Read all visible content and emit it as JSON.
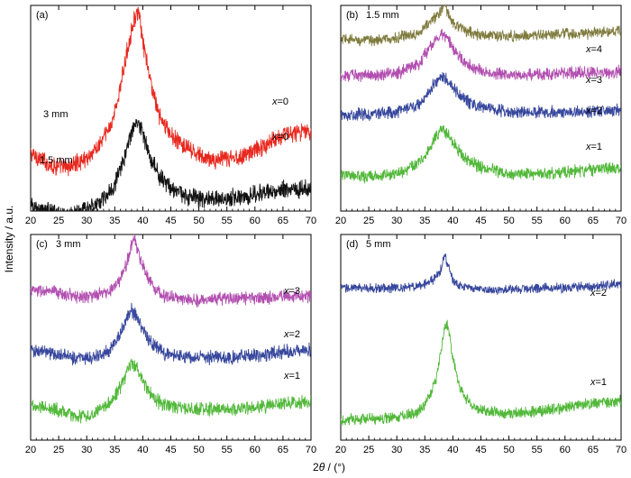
{
  "figure": {
    "ylabel": "Intensity / a.u.",
    "xlabel_prefix": "2",
    "xlabel_theta": "θ",
    "xlabel_suffix": " / (°)"
  },
  "chart_data": [
    {
      "type": "line",
      "panel_label": "(a)",
      "subtitle": "",
      "xlim": [
        20,
        70
      ],
      "xticks": [
        20,
        25,
        30,
        35,
        40,
        45,
        50,
        55,
        60,
        65,
        70
      ],
      "series": [
        {
          "label_var": "x",
          "label_rest": "=0",
          "annotation": "3 mm",
          "color": "#e8281e",
          "x": [
            20,
            22,
            24,
            26,
            28,
            30,
            32,
            34,
            35,
            36,
            37,
            38,
            38.5,
            39,
            39.5,
            40,
            41,
            42,
            43,
            45,
            48,
            50,
            52,
            55,
            58,
            60,
            62,
            64,
            66,
            68,
            70
          ],
          "y": [
            0.28,
            0.25,
            0.22,
            0.21,
            0.23,
            0.26,
            0.31,
            0.4,
            0.48,
            0.6,
            0.75,
            0.88,
            0.94,
            0.96,
            0.93,
            0.82,
            0.68,
            0.56,
            0.46,
            0.37,
            0.3,
            0.27,
            0.25,
            0.25,
            0.27,
            0.3,
            0.32,
            0.36,
            0.38,
            0.38,
            0.39
          ],
          "noise": 0.035
        },
        {
          "label_var": "x",
          "label_rest": "=0",
          "annotation": "1.5 mm",
          "color": "#111111",
          "x": [
            20,
            22,
            24,
            26,
            28,
            30,
            32,
            34,
            35,
            36,
            37,
            38,
            38.5,
            39,
            39.5,
            40,
            41,
            42,
            43,
            45,
            48,
            50,
            52,
            55,
            58,
            60,
            62,
            64,
            66,
            68,
            70
          ],
          "y": [
            0.02,
            0.01,
            -0.01,
            -0.02,
            -0.01,
            0.01,
            0.04,
            0.09,
            0.13,
            0.2,
            0.29,
            0.38,
            0.42,
            0.44,
            0.42,
            0.37,
            0.29,
            0.22,
            0.17,
            0.11,
            0.07,
            0.06,
            0.06,
            0.06,
            0.07,
            0.08,
            0.09,
            0.1,
            0.11,
            0.11,
            0.11
          ],
          "noise": 0.035
        }
      ]
    },
    {
      "type": "line",
      "panel_label": "(b)",
      "subtitle": "1.5 mm",
      "xlim": [
        20,
        70
      ],
      "xticks": [
        20,
        25,
        30,
        35,
        40,
        45,
        50,
        55,
        60,
        65,
        70
      ],
      "series": [
        {
          "label_var": "x",
          "label_rest": "=4",
          "annotation": "",
          "color": "#7e7a3c",
          "x": [
            20,
            25,
            30,
            34,
            36,
            37,
            38,
            38.5,
            39,
            40,
            42,
            45,
            50,
            55,
            60,
            65,
            70
          ],
          "y": [
            0.835,
            0.83,
            0.84,
            0.87,
            0.92,
            0.95,
            0.97,
            1.02,
            0.97,
            0.92,
            0.88,
            0.855,
            0.85,
            0.855,
            0.86,
            0.865,
            0.875
          ],
          "noise": 0.022
        },
        {
          "label_var": "x",
          "label_rest": "=3",
          "annotation": "",
          "color": "#b24fb0",
          "x": [
            20,
            25,
            30,
            34,
            36,
            37,
            38,
            39,
            40,
            42,
            45,
            50,
            55,
            60,
            65,
            70
          ],
          "y": [
            0.66,
            0.66,
            0.67,
            0.72,
            0.8,
            0.84,
            0.86,
            0.84,
            0.79,
            0.72,
            0.68,
            0.66,
            0.665,
            0.67,
            0.675,
            0.68
          ],
          "noise": 0.024
        },
        {
          "label_var": "x",
          "label_rest": "=2",
          "annotation": "",
          "color": "#37479c",
          "x": [
            20,
            25,
            30,
            34,
            36,
            37,
            38,
            39,
            40,
            42,
            45,
            50,
            55,
            60,
            65,
            70
          ],
          "y": [
            0.47,
            0.47,
            0.48,
            0.52,
            0.59,
            0.63,
            0.66,
            0.64,
            0.6,
            0.54,
            0.5,
            0.48,
            0.48,
            0.48,
            0.485,
            0.49
          ],
          "noise": 0.024
        },
        {
          "label_var": "x",
          "label_rest": "=1",
          "annotation": "",
          "color": "#52b83a",
          "x": [
            20,
            25,
            30,
            34,
            36,
            37,
            38,
            39,
            40,
            42,
            45,
            50,
            55,
            60,
            65,
            70
          ],
          "y": [
            0.17,
            0.17,
            0.18,
            0.23,
            0.31,
            0.36,
            0.4,
            0.38,
            0.33,
            0.26,
            0.21,
            0.18,
            0.18,
            0.19,
            0.2,
            0.21
          ],
          "noise": 0.024
        }
      ]
    },
    {
      "type": "line",
      "panel_label": "(c)",
      "subtitle": "3 mm",
      "xlim": [
        20,
        70
      ],
      "xticks": [
        20,
        25,
        30,
        35,
        40,
        45,
        50,
        55,
        60,
        65,
        70
      ],
      "series": [
        {
          "label_var": "x",
          "label_rest": "=3",
          "annotation": "",
          "color": "#b24fb0",
          "x": [
            20,
            24,
            28,
            31,
            34,
            36,
            37,
            38,
            38.5,
            39,
            40,
            41,
            42,
            44,
            46,
            50,
            55,
            60,
            65,
            70
          ],
          "y": [
            0.73,
            0.72,
            0.7,
            0.7,
            0.72,
            0.78,
            0.85,
            0.95,
            0.99,
            0.93,
            0.85,
            0.79,
            0.74,
            0.7,
            0.69,
            0.68,
            0.69,
            0.69,
            0.7,
            0.7
          ],
          "noise": 0.025
        },
        {
          "label_var": "x",
          "label_rest": "=2",
          "annotation": "",
          "color": "#37479c",
          "x": [
            20,
            24,
            28,
            31,
            34,
            36,
            37,
            38,
            39,
            40,
            41,
            42,
            44,
            46,
            50,
            55,
            60,
            65,
            70
          ],
          "y": [
            0.44,
            0.42,
            0.4,
            0.4,
            0.44,
            0.52,
            0.58,
            0.63,
            0.6,
            0.54,
            0.49,
            0.46,
            0.42,
            0.41,
            0.4,
            0.4,
            0.41,
            0.43,
            0.44
          ],
          "noise": 0.027
        },
        {
          "label_var": "x",
          "label_rest": "=1",
          "annotation": "",
          "color": "#52b83a",
          "x": [
            20,
            24,
            28,
            31,
            34,
            36,
            37,
            38,
            39,
            40,
            41,
            42,
            44,
            46,
            50,
            55,
            60,
            65,
            70
          ],
          "y": [
            0.17,
            0.15,
            0.12,
            0.12,
            0.18,
            0.26,
            0.32,
            0.37,
            0.35,
            0.29,
            0.24,
            0.2,
            0.17,
            0.16,
            0.15,
            0.15,
            0.16,
            0.18,
            0.19
          ],
          "noise": 0.027
        }
      ]
    },
    {
      "type": "line",
      "panel_label": "(d)",
      "subtitle": "5 mm",
      "xlim": [
        20,
        70
      ],
      "xticks": [
        20,
        25,
        30,
        35,
        40,
        45,
        50,
        55,
        60,
        65,
        70
      ],
      "series": [
        {
          "label_var": "x",
          "label_rest": "=2",
          "annotation": "",
          "color": "#37479c",
          "x": [
            20,
            25,
            30,
            34,
            36,
            37,
            38,
            38.5,
            39,
            40,
            41,
            43,
            46,
            50,
            55,
            60,
            65,
            70
          ],
          "y": [
            0.74,
            0.74,
            0.74,
            0.75,
            0.77,
            0.79,
            0.84,
            0.9,
            0.86,
            0.78,
            0.75,
            0.74,
            0.73,
            0.73,
            0.74,
            0.74,
            0.75,
            0.76
          ],
          "noise": 0.018
        },
        {
          "label_var": "x",
          "label_rest": "=1",
          "annotation": "",
          "color": "#52b83a",
          "x": [
            20,
            25,
            30,
            33,
            35,
            36,
            37,
            38,
            38.5,
            39,
            39.5,
            40,
            41,
            42,
            44,
            46,
            50,
            55,
            60,
            65,
            70
          ],
          "y": [
            0.1,
            0.1,
            0.11,
            0.13,
            0.17,
            0.22,
            0.3,
            0.45,
            0.55,
            0.57,
            0.5,
            0.4,
            0.28,
            0.21,
            0.16,
            0.14,
            0.13,
            0.14,
            0.16,
            0.18,
            0.19
          ],
          "noise": 0.022
        }
      ]
    }
  ]
}
